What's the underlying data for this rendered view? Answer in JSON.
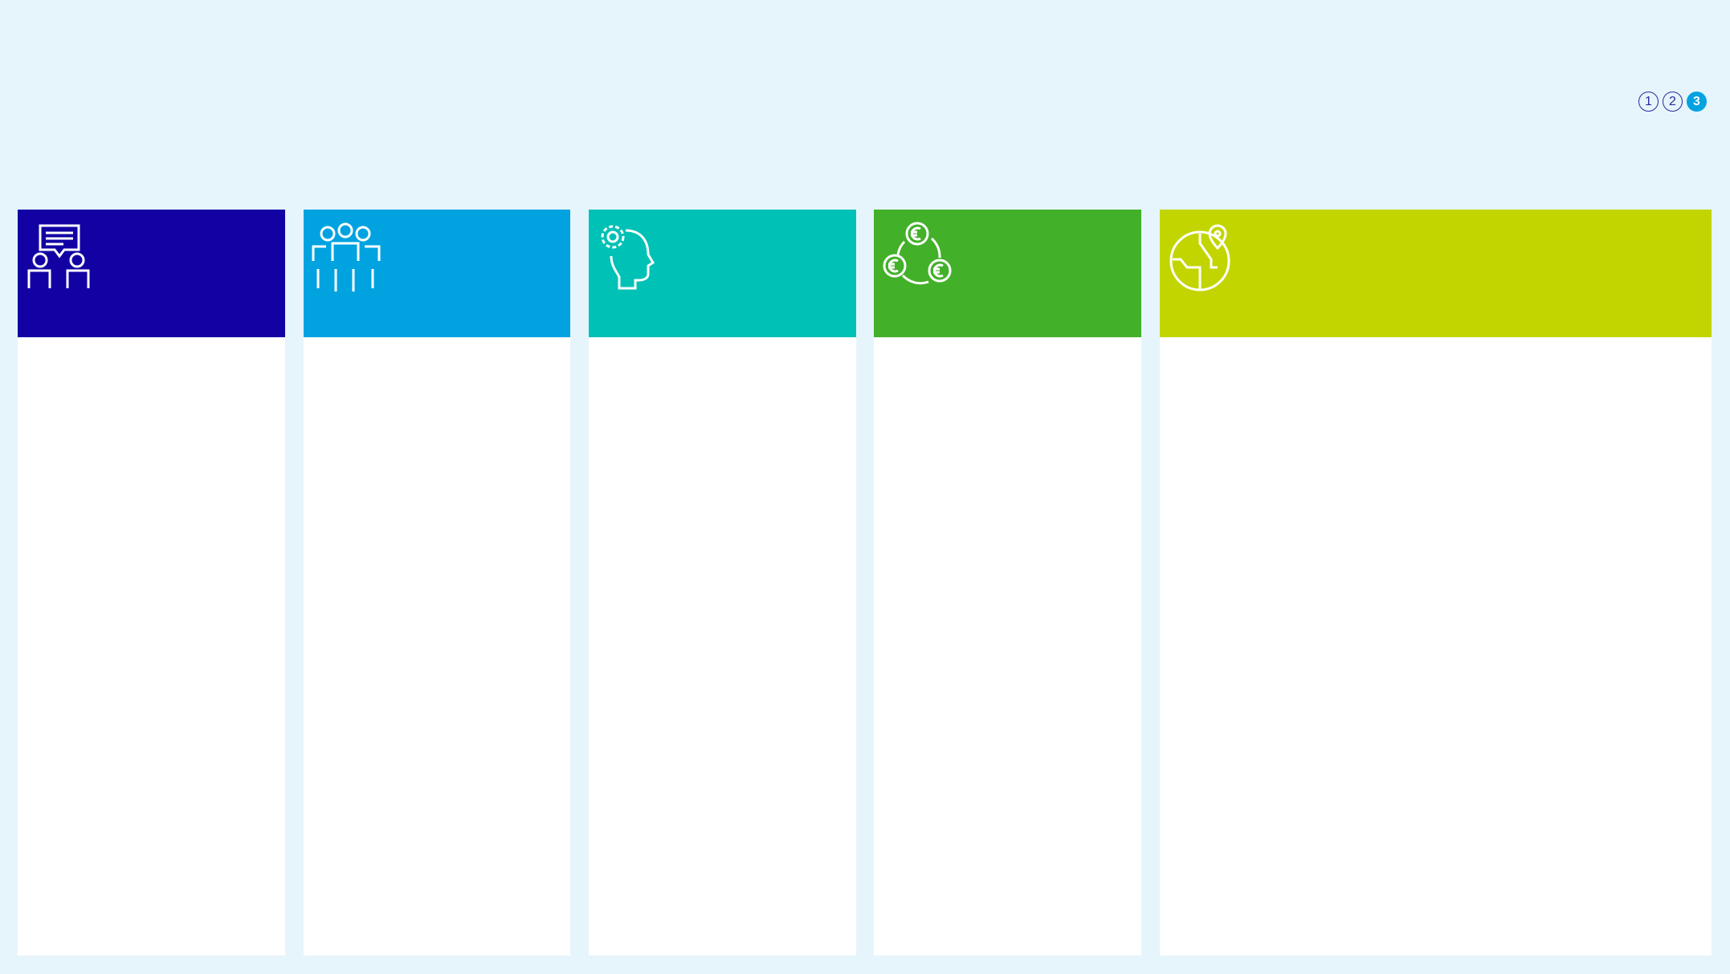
{
  "pagination": {
    "pages": [
      "1",
      "2",
      "3"
    ],
    "current": "3",
    "active_color": "#00a3e0"
  },
  "columns": [
    {
      "icon": "people-conversation-icon",
      "color": "#1202a3"
    },
    {
      "icon": "team-group-icon",
      "color": "#00a3e0"
    },
    {
      "icon": "head-gear-icon",
      "color": "#00c1b5"
    },
    {
      "icon": "euro-cycle-icon",
      "color": "#43b02a"
    },
    {
      "icon": "globe-location-icon",
      "color": "#c2d500"
    }
  ]
}
